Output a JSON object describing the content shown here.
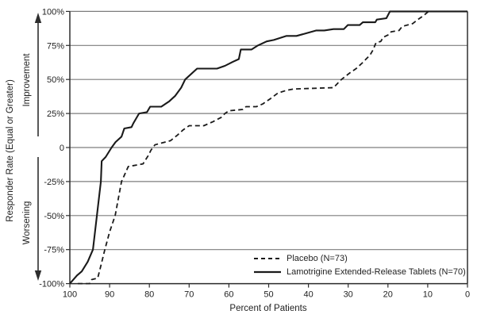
{
  "chart_data": {
    "type": "line",
    "title": "",
    "xlabel": "Percent of Patients",
    "ylabel": "Responder Rate (Equal or Greater)",
    "ylabel_upper": "Improvement",
    "ylabel_lower": "Worsening",
    "xlim": [
      100,
      0
    ],
    "ylim": [
      -100,
      100
    ],
    "x_axis_reversed": true,
    "grid": "horizontal-only",
    "legend_position": "inside-lower-right",
    "x_ticks": [
      100,
      90,
      80,
      70,
      60,
      50,
      40,
      30,
      20,
      10,
      0
    ],
    "y_ticks": [
      {
        "label": "100%",
        "value": 100
      },
      {
        "label": "75%",
        "value": 75
      },
      {
        "label": "50%",
        "value": 50
      },
      {
        "label": "25%",
        "value": 25
      },
      {
        "label": "0",
        "value": 0
      },
      {
        "label": "-25%",
        "value": -25
      },
      {
        "label": "-50%",
        "value": -50
      },
      {
        "label": "-75%",
        "value": -75
      },
      {
        "label": "-100%",
        "value": -100
      }
    ],
    "series": [
      {
        "name": "Placebo (N=73)",
        "style": "dashed",
        "points": [
          [
            98,
            -100
          ],
          [
            95,
            -100
          ],
          [
            94.5,
            -97
          ],
          [
            93,
            -96
          ],
          [
            92.3,
            -88
          ],
          [
            91.2,
            -75
          ],
          [
            90,
            -62
          ],
          [
            88.6,
            -50
          ],
          [
            87,
            -25
          ],
          [
            85.3,
            -14
          ],
          [
            81.6,
            -12
          ],
          [
            80.3,
            -6
          ],
          [
            79.6,
            -2
          ],
          [
            78.6,
            2
          ],
          [
            76,
            4
          ],
          [
            74.7,
            5
          ],
          [
            73,
            9
          ],
          [
            71.5,
            13
          ],
          [
            70,
            16
          ],
          [
            66.3,
            16
          ],
          [
            64,
            19
          ],
          [
            62,
            22
          ],
          [
            61,
            25
          ],
          [
            60,
            27
          ],
          [
            56.5,
            28
          ],
          [
            55.7,
            30
          ],
          [
            53.1,
            30
          ],
          [
            51.5,
            32
          ],
          [
            49.5,
            36
          ],
          [
            47.7,
            40
          ],
          [
            45.5,
            42
          ],
          [
            43.7,
            43
          ],
          [
            33.7,
            44
          ],
          [
            31.7,
            50
          ],
          [
            29.5,
            55
          ],
          [
            28,
            58
          ],
          [
            26.5,
            62
          ],
          [
            25.5,
            65
          ],
          [
            24.5,
            68
          ],
          [
            23.7,
            72
          ],
          [
            23.3,
            75
          ],
          [
            23,
            77
          ],
          [
            21.8,
            78
          ],
          [
            21.2,
            81
          ],
          [
            19.8,
            83
          ],
          [
            19.2,
            85
          ],
          [
            17.2,
            86
          ],
          [
            16.4,
            89
          ],
          [
            13.8,
            91
          ],
          [
            12.5,
            94
          ],
          [
            11,
            97
          ],
          [
            9.8,
            100
          ],
          [
            0,
            100
          ]
        ]
      },
      {
        "name": "Lamotrigine Extended-Release Tablets (N=70)",
        "style": "solid",
        "points": [
          [
            100,
            -100
          ],
          [
            98.2,
            -94
          ],
          [
            97,
            -91
          ],
          [
            95.5,
            -84
          ],
          [
            94.2,
            -75
          ],
          [
            93.2,
            -50
          ],
          [
            92.2,
            -25
          ],
          [
            92,
            -10
          ],
          [
            91,
            -7
          ],
          [
            89.5,
            0
          ],
          [
            88.5,
            4
          ],
          [
            87,
            8
          ],
          [
            86.3,
            14
          ],
          [
            84.5,
            15
          ],
          [
            84,
            18
          ],
          [
            82.6,
            25
          ],
          [
            80.6,
            26
          ],
          [
            79.8,
            30
          ],
          [
            77,
            30
          ],
          [
            76,
            32
          ],
          [
            75,
            34
          ],
          [
            73.5,
            38
          ],
          [
            72,
            44
          ],
          [
            71,
            50
          ],
          [
            68,
            58
          ],
          [
            63,
            58
          ],
          [
            61,
            60
          ],
          [
            59,
            63
          ],
          [
            57.5,
            65
          ],
          [
            57,
            72
          ],
          [
            54.3,
            72
          ],
          [
            52.7,
            75
          ],
          [
            50.5,
            78
          ],
          [
            48.7,
            79
          ],
          [
            45.5,
            82
          ],
          [
            43,
            82
          ],
          [
            40.5,
            84
          ],
          [
            38,
            86
          ],
          [
            36,
            86
          ],
          [
            33.7,
            87
          ],
          [
            31.1,
            87
          ],
          [
            30.1,
            90
          ],
          [
            27.1,
            90
          ],
          [
            26.3,
            92
          ],
          [
            23.2,
            92
          ],
          [
            22.8,
            94
          ],
          [
            20.4,
            95
          ],
          [
            19.5,
            100
          ],
          [
            0,
            100
          ]
        ]
      }
    ],
    "colors": {
      "line": "#1a1a1a",
      "grid": "#7d7d7d",
      "axis": "#2e2e2e",
      "text": "#1f1f1f",
      "background": "#ffffff"
    }
  }
}
